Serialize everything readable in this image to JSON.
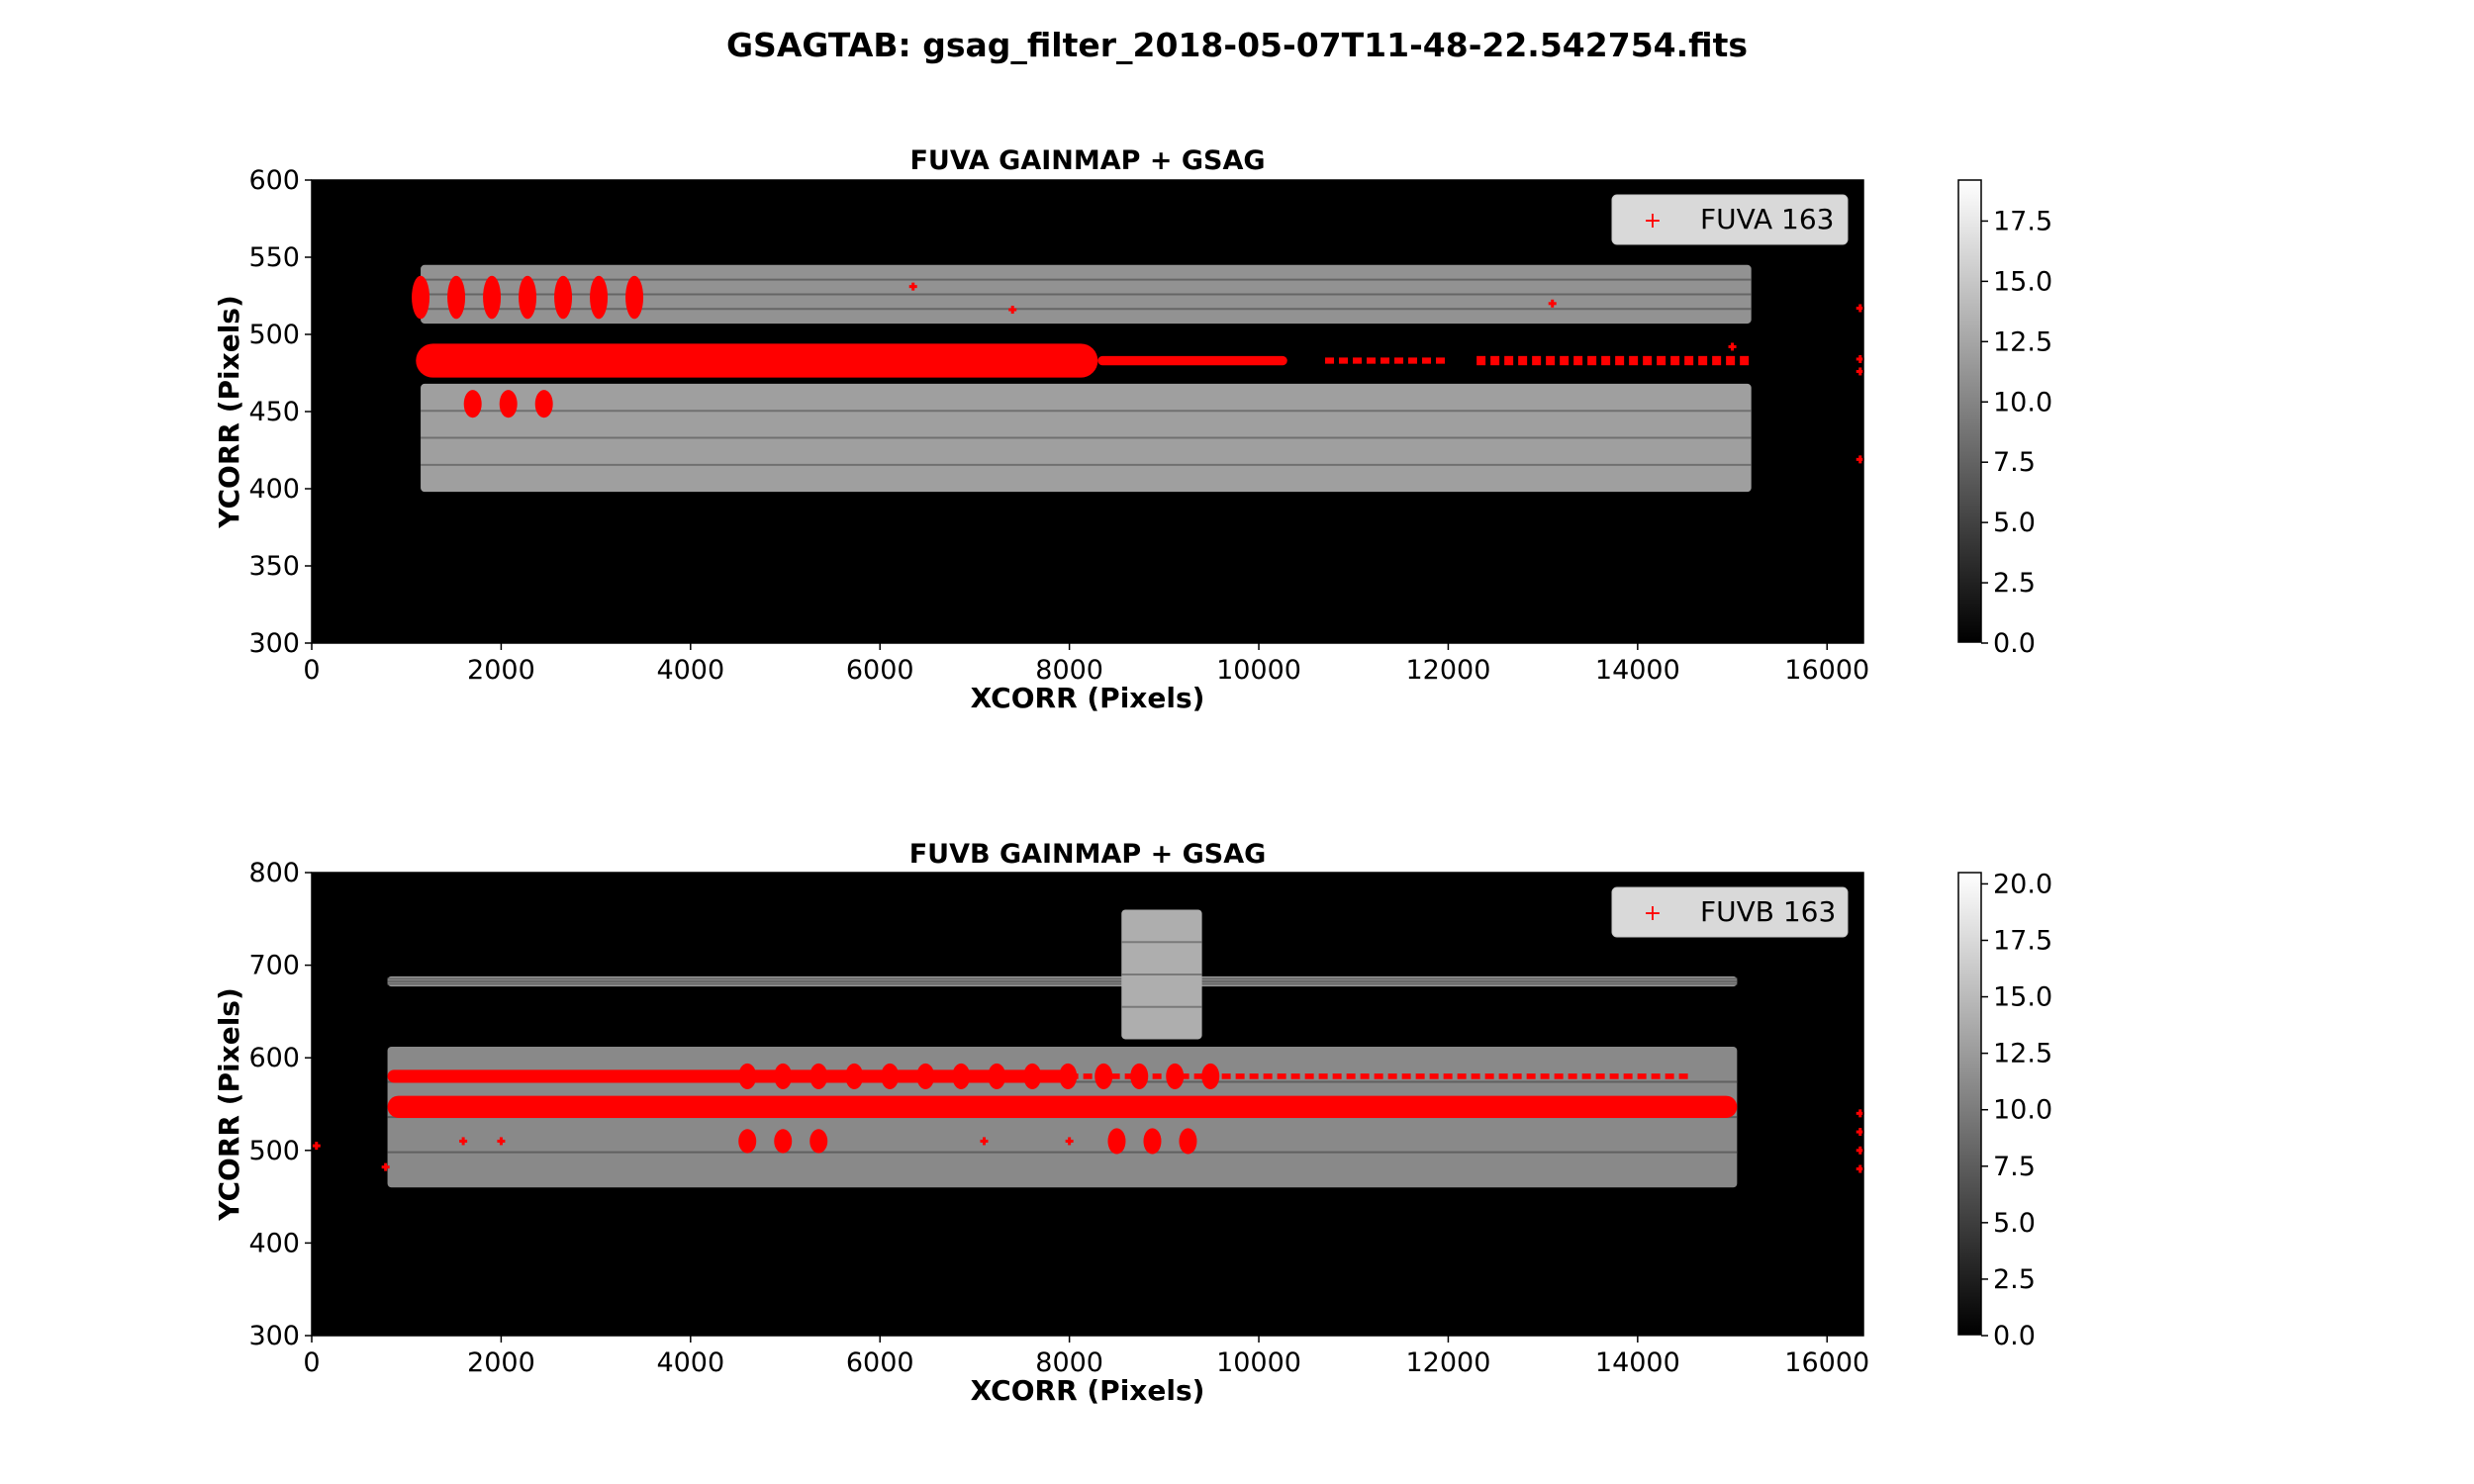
{
  "figure_title": "GSAGTAB: gsag_filter_2018-05-07T11-48-22.542754.fits",
  "chart_data": [
    {
      "type": "heatmap",
      "title": "FUVA GAINMAP + GSAG",
      "xlabel": "XCORR (Pixels)",
      "ylabel": "YCORR (Pixels)",
      "xlim": [
        0,
        16384
      ],
      "ylim": [
        300,
        600
      ],
      "xticks": [
        0,
        2000,
        4000,
        6000,
        8000,
        10000,
        12000,
        14000,
        16000
      ],
      "yticks": [
        300,
        350,
        400,
        450,
        500,
        550,
        600
      ],
      "xtick_labels": [
        "0",
        "2000",
        "4000",
        "6000",
        "8000",
        "10000",
        "12000",
        "14000",
        "16000"
      ],
      "ytick_labels": [
        "300",
        "350",
        "400",
        "450",
        "500",
        "550",
        "600"
      ],
      "colormap": "gray",
      "colorbar": {
        "min": 0.0,
        "max": 19.2,
        "ticks": [
          0.0,
          2.5,
          5.0,
          7.5,
          10.0,
          12.5,
          15.0,
          17.5
        ],
        "tick_labels": [
          "0.0",
          "2.5",
          "5.0",
          "7.5",
          "10.0",
          "12.5",
          "15.0",
          "17.5"
        ]
      },
      "legend": {
        "label": "FUVA 163",
        "placement": "top-right",
        "marker": "+",
        "color": "#ff0000"
      },
      "gain_bands": [
        {
          "x_start": 1150,
          "x_end": 15200,
          "y_start": 507,
          "y_end": 545,
          "gain": 11
        },
        {
          "x_start": 1150,
          "x_end": 15200,
          "y_start": 398,
          "y_end": 468,
          "gain": 12
        }
      ],
      "gsag_rows": [
        {
          "y": 483,
          "x_start": 1100,
          "x_end": 8300,
          "half_height": 11,
          "style": "band"
        },
        {
          "y": 483,
          "x_start": 8300,
          "x_end": 10300,
          "half_height": 3,
          "style": "band"
        },
        {
          "y": 483,
          "x_start": 10700,
          "x_end": 11900,
          "half_height": 2,
          "style": "dash"
        },
        {
          "y": 483,
          "x_start": 12300,
          "x_end": 15200,
          "half_height": 3,
          "style": "dash"
        },
        {
          "y": 524,
          "x_start": 1150,
          "x_end": 3500,
          "half_height": 14,
          "style": "blobs"
        },
        {
          "y": 455,
          "x_start": 1700,
          "x_end": 2700,
          "half_height": 9,
          "style": "blobs"
        }
      ],
      "gsag_points": [
        {
          "x": 6350,
          "y": 531
        },
        {
          "x": 7400,
          "y": 516
        },
        {
          "x": 13100,
          "y": 520
        },
        {
          "x": 15000,
          "y": 492
        },
        {
          "x": 16350,
          "y": 517
        },
        {
          "x": 16350,
          "y": 484
        },
        {
          "x": 16350,
          "y": 476
        },
        {
          "x": 16350,
          "y": 419
        }
      ]
    },
    {
      "type": "heatmap",
      "title": "FUVB GAINMAP + GSAG",
      "xlabel": "XCORR (Pixels)",
      "ylabel": "YCORR (Pixels)",
      "xlim": [
        0,
        16384
      ],
      "ylim": [
        300,
        800
      ],
      "xticks": [
        0,
        2000,
        4000,
        6000,
        8000,
        10000,
        12000,
        14000,
        16000
      ],
      "yticks": [
        300,
        400,
        500,
        600,
        700,
        800
      ],
      "xtick_labels": [
        "0",
        "2000",
        "4000",
        "6000",
        "8000",
        "10000",
        "12000",
        "14000",
        "16000"
      ],
      "ytick_labels": [
        "300",
        "400",
        "500",
        "600",
        "700",
        "800"
      ],
      "colormap": "gray",
      "colorbar": {
        "min": 0.0,
        "max": 20.5,
        "ticks": [
          0.0,
          2.5,
          5.0,
          7.5,
          10.0,
          12.5,
          15.0,
          17.5,
          20.0
        ],
        "tick_labels": [
          "0.0",
          "2.5",
          "5.0",
          "7.5",
          "10.0",
          "12.5",
          "15.0",
          "17.5",
          "20.0"
        ]
      },
      "legend": {
        "label": "FUVB 163",
        "placement": "top-right",
        "marker": "+",
        "color": "#ff0000"
      },
      "gain_bands": [
        {
          "x_start": 800,
          "x_end": 15050,
          "y_start": 460,
          "y_end": 612,
          "gain": 11
        },
        {
          "x_start": 800,
          "x_end": 15050,
          "y_start": 677,
          "y_end": 688,
          "gain": 12
        },
        {
          "x_start": 8550,
          "x_end": 9400,
          "y_start": 620,
          "y_end": 760,
          "gain": 14
        }
      ],
      "gsag_rows": [
        {
          "y": 547,
          "x_start": 800,
          "x_end": 15050,
          "half_height": 12,
          "style": "band"
        },
        {
          "y": 580,
          "x_start": 800,
          "x_end": 8000,
          "half_height": 7,
          "style": "band"
        },
        {
          "y": 580,
          "x_start": 8000,
          "x_end": 14500,
          "half_height": 3,
          "style": "dash"
        },
        {
          "y": 580,
          "x_start": 4600,
          "x_end": 9500,
          "half_height": 14,
          "style": "blobs"
        },
        {
          "y": 510,
          "x_start": 4600,
          "x_end": 5700,
          "half_height": 13,
          "style": "blobs"
        },
        {
          "y": 510,
          "x_start": 8500,
          "x_end": 9500,
          "half_height": 14,
          "style": "blobs"
        }
      ],
      "gsag_points": [
        {
          "x": 780,
          "y": 482
        },
        {
          "x": 1600,
          "y": 510
        },
        {
          "x": 2000,
          "y": 510
        },
        {
          "x": 7100,
          "y": 510
        },
        {
          "x": 8000,
          "y": 510
        },
        {
          "x": 16350,
          "y": 540
        },
        {
          "x": 16350,
          "y": 520
        },
        {
          "x": 16350,
          "y": 500
        },
        {
          "x": 16350,
          "y": 480
        },
        {
          "x": 50,
          "y": 505
        }
      ]
    }
  ]
}
